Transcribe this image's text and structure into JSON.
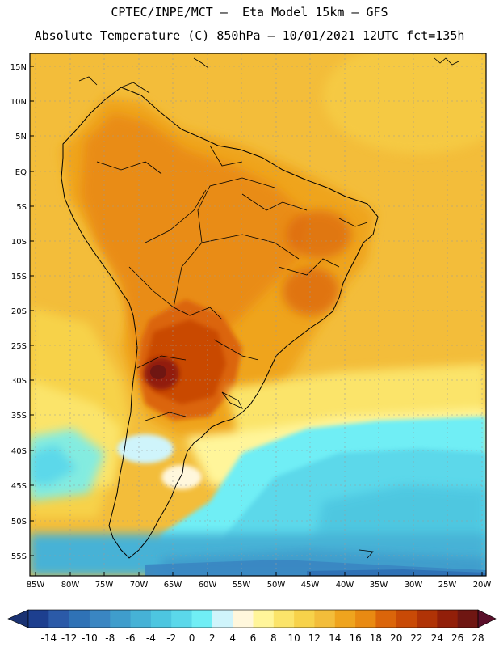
{
  "header": {
    "line1": "CPTEC/INPE/MCT –  Eta Model 15km – GFS",
    "line2": "Absolute Temperature (C) 850hPa – 10/01/2021 12UTC fct=135h"
  },
  "axes": {
    "lat_labels": [
      "15N",
      "10N",
      "5N",
      "EQ",
      "5S",
      "10S",
      "15S",
      "20S",
      "25S",
      "30S",
      "35S",
      "40S",
      "45S",
      "50S",
      "55S"
    ],
    "lon_labels": [
      "85W",
      "80W",
      "75W",
      "70W",
      "65W",
      "60W",
      "55W",
      "50W",
      "45W",
      "40W",
      "35W",
      "30W",
      "25W",
      "20W"
    ]
  },
  "colorbar": {
    "labels": [
      "-14",
      "-12",
      "-10",
      "-8",
      "-6",
      "-4",
      "-2",
      "0",
      "2",
      "4",
      "6",
      "8",
      "10",
      "12",
      "14",
      "16",
      "18",
      "20",
      "22",
      "24",
      "26",
      "28"
    ],
    "colors": [
      "#1d3f8f",
      "#2b5aa8",
      "#2f72b6",
      "#3a86c2",
      "#3f9dcc",
      "#46b2d6",
      "#4dc6e0",
      "#5bd8ea",
      "#70eef5",
      "#cff4fb",
      "#fff7dc",
      "#fff59a",
      "#fbe46a",
      "#f7d24a",
      "#f3bd3a",
      "#efa41e",
      "#e98a12",
      "#db650a",
      "#c94a06",
      "#b03306",
      "#921f09",
      "#6f1612"
    ],
    "under_color": "#1a3272",
    "over_color": "#5a0f2a"
  }
}
